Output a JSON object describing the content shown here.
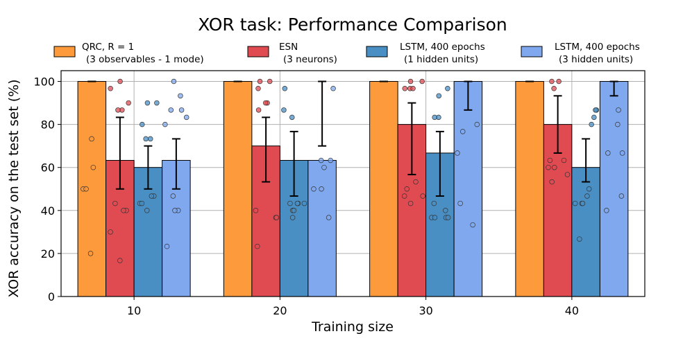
{
  "chart_data": {
    "type": "bar",
    "title": "XOR task: Performance Comparison",
    "xlabel": "Training size",
    "ylabel": "XOR accuracy on the test set (%)",
    "ylim": [
      0,
      105
    ],
    "yticks": [
      0,
      20,
      40,
      60,
      80,
      100
    ],
    "grid": true,
    "legend_position": "top",
    "categories": [
      "10",
      "20",
      "30",
      "40"
    ],
    "series": [
      {
        "name": "QRC, R = 1",
        "sublabel": "(3 observables - 1 mode)",
        "color": "#fd9a3c",
        "values": [
          100,
          100,
          100,
          100
        ],
        "err_low": [
          100,
          100,
          100,
          100
        ],
        "err_high": [
          100,
          100,
          100,
          100
        ],
        "points": [
          [
            73.3,
            60,
            50,
            50,
            20
          ],
          [],
          [],
          []
        ]
      },
      {
        "name": "ESN",
        "sublabel": "(3 neurons)",
        "color": "#e04b52",
        "values": [
          63.3,
          70,
          80,
          80
        ],
        "err_low": [
          50,
          53.3,
          56.7,
          66.7
        ],
        "err_high": [
          83.3,
          83.3,
          90,
          93.3
        ],
        "points": [
          [
            100,
            96.7,
            90,
            86.7,
            86.7,
            43.3,
            40,
            40,
            30,
            16.7
          ],
          [
            100,
            100,
            96.7,
            90,
            90,
            86.7,
            40,
            36.7,
            36.7,
            23.3
          ],
          [
            100,
            100,
            96.7,
            96.7,
            96.7,
            53.3,
            50,
            46.7,
            46.7,
            43.3
          ],
          [
            100,
            100,
            96.7,
            63.3,
            63.3,
            60,
            60,
            60,
            56.7,
            53.3
          ]
        ]
      },
      {
        "name": "LSTM, 400 epochs",
        "sublabel": "(1 hidden units)",
        "color": "#4a8fc4",
        "values": [
          60,
          63.3,
          66.7,
          60
        ],
        "err_low": [
          50,
          46.7,
          46.7,
          53.3
        ],
        "err_high": [
          70,
          76.7,
          76.7,
          73.3
        ],
        "points": [
          [
            90,
            90,
            80,
            73.3,
            73.3,
            46.7,
            46.7,
            43.3,
            43.3,
            40
          ],
          [
            96.7,
            86.7,
            83.3,
            43.3,
            43.3,
            43.3,
            43.3,
            40,
            40,
            36.7
          ],
          [
            96.7,
            93.3,
            83.3,
            83.3,
            43.3,
            40,
            36.7,
            36.7,
            36.7,
            36.7
          ],
          [
            86.7,
            86.7,
            83.3,
            80,
            50,
            46.7,
            43.3,
            43.3,
            43.3,
            26.7
          ]
        ]
      },
      {
        "name": "LSTM, 400 epochs",
        "sublabel": "(3 hidden units)",
        "color": "#7fa8ee",
        "values": [
          63.3,
          63.3,
          100,
          100
        ],
        "err_low": [
          50,
          70,
          86.7,
          93.3
        ],
        "err_high": [
          73.3,
          100,
          100,
          100
        ],
        "points": [
          [
            100,
            93.3,
            86.7,
            86.7,
            83.3,
            80,
            46.7,
            40,
            40,
            23.3
          ],
          [
            96.7,
            63.3,
            63.3,
            60,
            50,
            50,
            36.7
          ],
          [
            80,
            76.7,
            66.7,
            43.3,
            33.3
          ],
          [
            86.7,
            80,
            66.7,
            66.7,
            46.7,
            40
          ]
        ]
      }
    ]
  }
}
